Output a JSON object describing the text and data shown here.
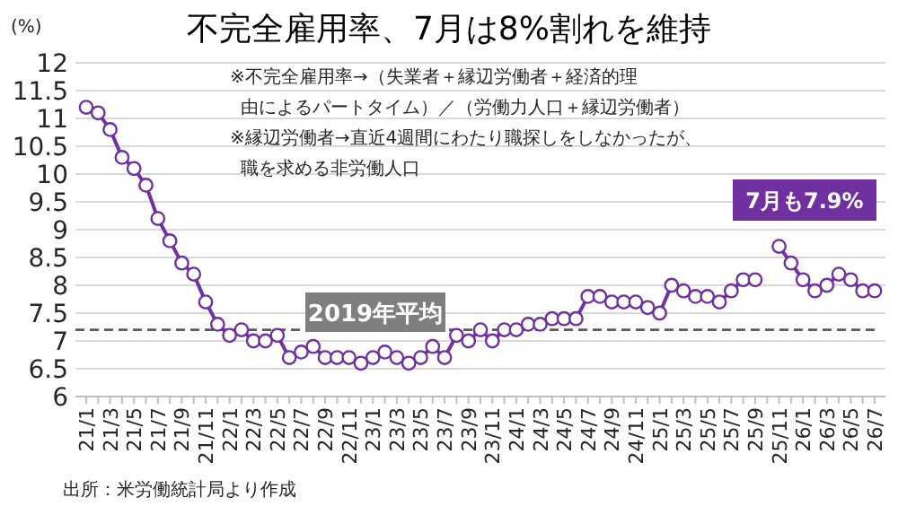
{
  "chart_data": {
    "type": "line",
    "title": "不完全雇用率、7月は8%割れを維持",
    "ylabel": "(%)",
    "categories": [
      "21/1",
      null,
      "21/3",
      null,
      "21/5",
      null,
      "21/7",
      null,
      "21/9",
      null,
      "21/11",
      null,
      "22/1",
      null,
      "22/3",
      null,
      "22/5",
      null,
      "22/7",
      null,
      "22/9",
      null,
      "22/11",
      null,
      "23/1",
      null,
      "23/3",
      null,
      "23/5",
      null,
      "23/7",
      null,
      "23/9",
      null,
      "23/11",
      null,
      "24/1",
      null,
      "24/3",
      null,
      "24/5",
      null,
      "24/7",
      null,
      "24/9",
      null,
      "24/11",
      null,
      "25/1",
      null,
      "25/3",
      null,
      "25/5",
      null,
      "25/7",
      null,
      "25/9",
      null,
      "25/11",
      null,
      "26/1",
      null,
      "26/3",
      null,
      "26/5",
      null,
      "26/7"
    ],
    "series": [
      {
        "color": "#7030a0",
        "values": [
          11.2,
          11.1,
          10.8,
          10.3,
          10.1,
          9.8,
          9.2,
          8.8,
          8.4,
          8.2,
          7.7,
          7.3,
          7.1,
          7.2,
          7.0,
          7.0,
          7.1,
          6.7,
          6.8,
          6.9,
          6.7,
          6.7,
          6.7,
          6.6,
          6.7,
          6.8,
          6.7,
          6.6,
          6.7,
          6.9,
          6.7,
          7.1,
          7.0,
          7.2,
          7.0,
          7.2,
          7.2,
          7.3,
          7.3,
          7.4,
          7.4,
          7.4,
          7.8,
          7.8,
          7.7,
          7.7,
          7.7,
          7.6,
          7.5,
          8.0,
          7.9,
          7.8,
          7.8,
          7.7,
          7.9,
          8.1,
          8.1,
          null,
          8.7,
          8.4,
          8.1,
          7.9,
          8.0,
          8.2,
          8.1,
          7.9,
          7.9
        ]
      }
    ],
    "ylim": [
      6,
      12
    ],
    "yticks": [
      6,
      6.5,
      7,
      7.5,
      8,
      8.5,
      9,
      9.5,
      10,
      10.5,
      11,
      11.5,
      12
    ],
    "grid": "y",
    "marker": "circle",
    "line_style": "solid",
    "ref_lines": [
      {
        "axis": "y",
        "value": 7.2,
        "label": "2019年平均",
        "color": "#595959",
        "line_style": "dashed"
      }
    ],
    "annotations": [
      "※不完全雇用率→（失業者＋縁辺労働者＋経済的理",
      "由によるパートタイム）／（労働力人口＋縁辺労働者）",
      "※縁辺労働者→直近4週間にわたり職探しをしなかったが、",
      "職を求める非労働人口",
      "7月も7.9%",
      "出所：米労働統計局より作成"
    ]
  }
}
